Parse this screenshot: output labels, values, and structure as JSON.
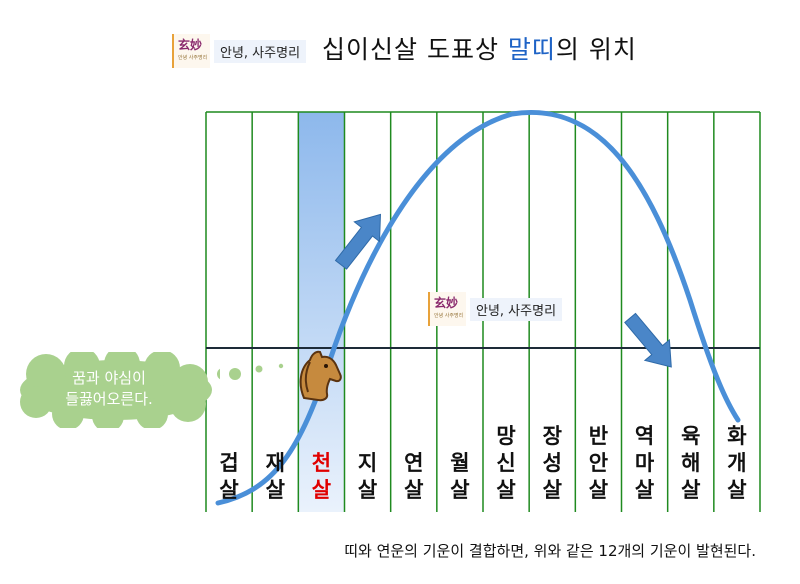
{
  "title": {
    "prefix": "십이신살 도표상 ",
    "highlight": "말띠",
    "suffix": "의 위치"
  },
  "logo": {
    "mark": "玄妙",
    "mark_small": "안녕 사주명리",
    "text": "안녕, 사주명리"
  },
  "columns": [
    "겁살",
    "재살",
    "천살",
    "지살",
    "연살",
    "월살",
    "망신살",
    "장성살",
    "반안살",
    "역마살",
    "육해살",
    "화개살"
  ],
  "highlight_column": 2,
  "thought_bubble": {
    "line1": "꿈과 야심이",
    "line2": "들끓어오른다."
  },
  "caption": "띠와 연운의 기운이 결합하면, 위와 같은 12개의 기운이 발현된다.",
  "colors": {
    "grid_line": "#1f8a1f",
    "baseline": "#1d2b38",
    "curve": "#4a8fd8",
    "arrow": "#4a86c8",
    "highlight_top": "#8db8ec",
    "highlight_bottom": "#eaf2fc",
    "bubble": "#a9d18e",
    "highlight_text": "#e00000",
    "title_highlight": "#1e63c6"
  },
  "icons": {
    "mascot": "horse-head-icon",
    "up_arrow": "up-right-arrow-icon",
    "down_arrow": "down-right-arrow-icon"
  }
}
